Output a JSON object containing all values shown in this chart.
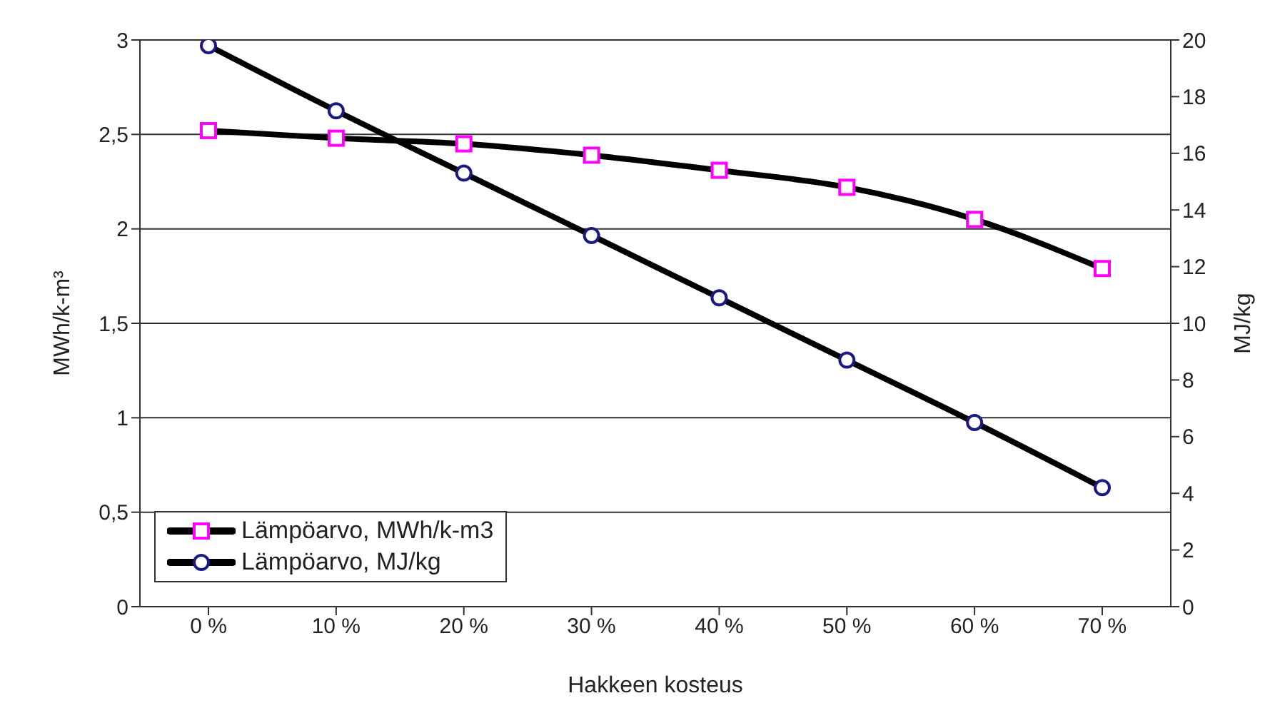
{
  "chart_data": {
    "type": "line",
    "xlabel": "Hakkeen kosteus",
    "ylabel": "MWh/k-m³",
    "y2label": "MJ/kg",
    "categories": [
      "0 %",
      "10 %",
      "20 %",
      "30 %",
      "40 %",
      "50 %",
      "60 %",
      "70 %"
    ],
    "series": [
      {
        "name": "Lämpöarvo, MWh/k-m3",
        "color": "#ff00ff",
        "marker": "square",
        "values": [
          2.52,
          2.48,
          2.45,
          2.39,
          2.31,
          2.22,
          2.05,
          1.79
        ]
      },
      {
        "name": "Lämpöarvo, MJ/kg",
        "color": "#1a1a80",
        "marker": "circle",
        "axis": "y2",
        "values": [
          19.8,
          17.5,
          15.3,
          13.1,
          10.9,
          8.7,
          6.5,
          4.2
        ]
      }
    ],
    "ylim": [
      0,
      3
    ],
    "yticks": [
      0,
      {
        "value": 0.5,
        "label": "0,5"
      },
      1,
      {
        "value": 1.5,
        "label": "1,5"
      },
      2,
      {
        "value": 2.5,
        "label": "2,5"
      },
      3
    ],
    "y2lim": [
      0,
      20
    ],
    "y2ticks": [
      0,
      2,
      4,
      6,
      8,
      10,
      12,
      14,
      16,
      18,
      20
    ],
    "grid": "y",
    "legend": "bottom left",
    "line_style": "solid"
  }
}
